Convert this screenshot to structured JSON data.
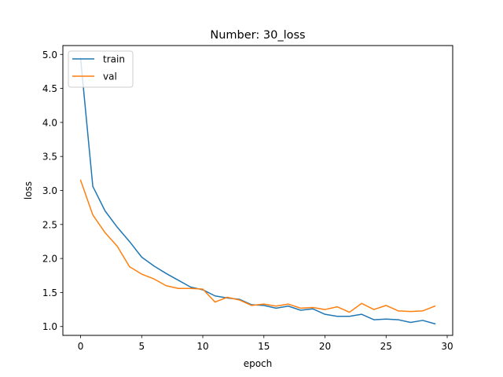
{
  "chart_data": {
    "type": "line",
    "title": "Number: 30_loss",
    "xlabel": "epoch",
    "ylabel": "loss",
    "xlim": [
      -1.45,
      30.45
    ],
    "ylim": [
      0.87,
      5.13
    ],
    "x_ticks": [
      0,
      5,
      10,
      15,
      20,
      25,
      30
    ],
    "y_ticks": [
      1.0,
      1.5,
      2.0,
      2.5,
      3.0,
      3.5,
      4.0,
      4.5,
      5.0
    ],
    "y_tick_labels": [
      "1.0",
      "1.5",
      "2.0",
      "2.5",
      "3.0",
      "3.5",
      "4.0",
      "4.5",
      "5.0"
    ],
    "grid": false,
    "legend_position": "top-left",
    "x": [
      0,
      1,
      2,
      3,
      4,
      5,
      6,
      7,
      8,
      9,
      10,
      11,
      12,
      13,
      14,
      15,
      16,
      17,
      18,
      19,
      20,
      21,
      22,
      23,
      24,
      25,
      26,
      27,
      28,
      29
    ],
    "series": [
      {
        "name": "train",
        "color": "#1f77b4",
        "values": [
          4.94,
          3.06,
          2.7,
          2.46,
          2.25,
          2.02,
          1.89,
          1.78,
          1.68,
          1.58,
          1.54,
          1.45,
          1.42,
          1.4,
          1.32,
          1.31,
          1.27,
          1.3,
          1.24,
          1.26,
          1.18,
          1.15,
          1.15,
          1.18,
          1.1,
          1.11,
          1.1,
          1.06,
          1.09,
          1.04
        ]
      },
      {
        "name": "val",
        "color": "#ff7f0e",
        "values": [
          3.15,
          2.64,
          2.38,
          2.18,
          1.88,
          1.77,
          1.7,
          1.6,
          1.56,
          1.56,
          1.55,
          1.36,
          1.43,
          1.39,
          1.31,
          1.33,
          1.3,
          1.33,
          1.27,
          1.28,
          1.25,
          1.29,
          1.21,
          1.34,
          1.25,
          1.31,
          1.23,
          1.22,
          1.23,
          1.3
        ]
      }
    ]
  }
}
